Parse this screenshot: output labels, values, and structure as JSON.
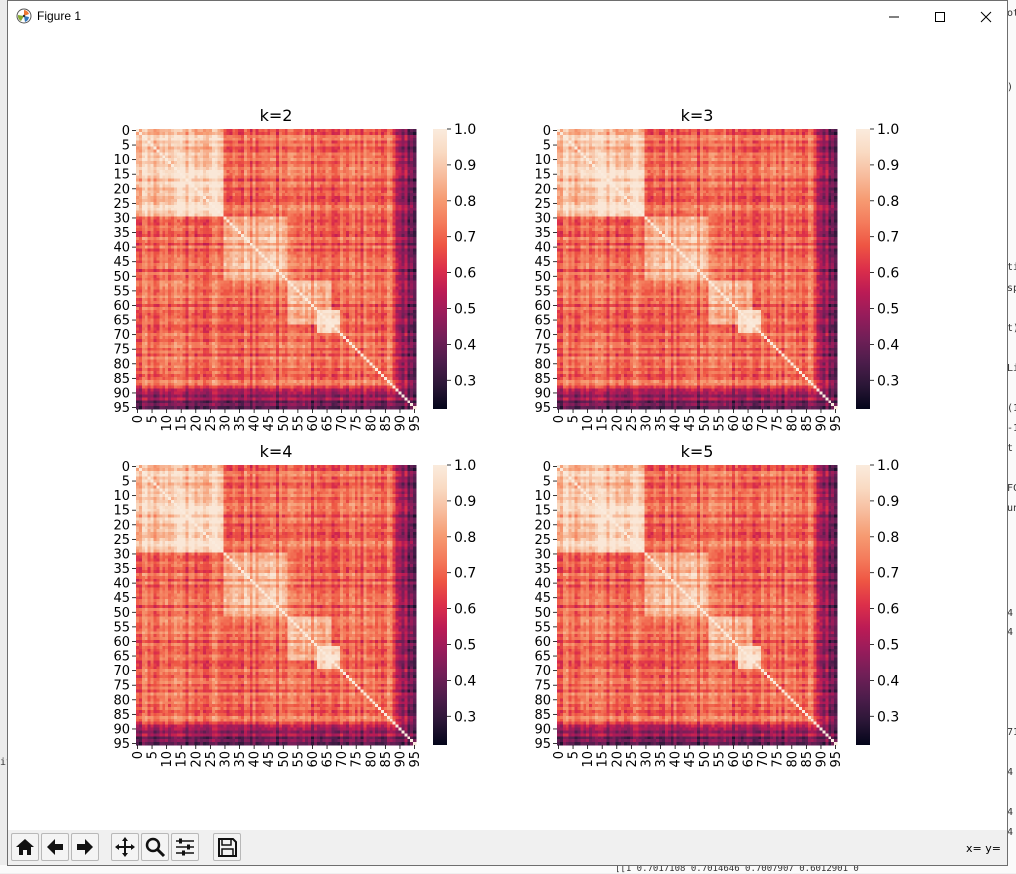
{
  "window": {
    "title": "Figure 1",
    "coords_readout": "x= y="
  },
  "toolbar": {
    "buttons": [
      "home-icon",
      "back-icon",
      "forward-icon",
      "pan-icon",
      "zoom-icon",
      "configure-subplots-icon",
      "save-icon"
    ]
  },
  "background": {
    "left_fragment": "it",
    "right_fragments": [
      "ot",
      ")",
      "ti",
      "sp",
      "t)",
      "Li",
      "(1",
      "-1",
      "t",
      "FC",
      "un",
      "4",
      "4",
      "71",
      "4",
      "4",
      "4"
    ],
    "bottom_fragment": "[[1        0.7017108 0.7014646     0.7007907 0.6012901 0"
  },
  "colors": {
    "cmap_rocket": [
      "#03051a",
      "#2a1636",
      "#4c1d4b",
      "#701f57",
      "#961c5b",
      "#bb1b55",
      "#dc2f4a",
      "#ee5543",
      "#f47c5c",
      "#f69c73",
      "#f7bc9d",
      "#f9dac2",
      "#faebdd"
    ]
  },
  "chart_data": [
    {
      "type": "heatmap",
      "title": "k=2",
      "n": 96,
      "xtick_labels": [
        "0",
        "5",
        "10",
        "15",
        "20",
        "25",
        "30",
        "35",
        "40",
        "45",
        "50",
        "55",
        "60",
        "65",
        "70",
        "75",
        "80",
        "85",
        "90",
        "95"
      ],
      "ytick_labels": [
        "0",
        "5",
        "10",
        "15",
        "20",
        "25",
        "30",
        "35",
        "40",
        "45",
        "50",
        "55",
        "60",
        "65",
        "70",
        "75",
        "80",
        "85",
        "90",
        "95"
      ],
      "colorbar_ticks": [
        "1.0",
        "0.9",
        "0.8",
        "0.7",
        "0.6",
        "0.5",
        "0.4",
        "0.3"
      ],
      "vmin": 0.22,
      "vmax": 1.0,
      "blocks": [
        [
          0,
          30,
          0.88
        ],
        [
          14,
          30,
          0.95
        ],
        [
          30,
          52,
          0.86
        ],
        [
          52,
          67,
          0.82
        ],
        [
          62,
          70,
          0.98
        ],
        [
          74,
          92,
          0.66
        ]
      ],
      "background_value": 0.7,
      "diagonal": 1.0
    },
    {
      "type": "heatmap",
      "title": "k=3",
      "n": 96,
      "xtick_labels": [
        "0",
        "5",
        "10",
        "15",
        "20",
        "25",
        "30",
        "35",
        "40",
        "45",
        "50",
        "55",
        "60",
        "65",
        "70",
        "75",
        "80",
        "85",
        "90",
        "95"
      ],
      "ytick_labels": [
        "0",
        "5",
        "10",
        "15",
        "20",
        "25",
        "30",
        "35",
        "40",
        "45",
        "50",
        "55",
        "60",
        "65",
        "70",
        "75",
        "80",
        "85",
        "90",
        "95"
      ],
      "colorbar_ticks": [
        "1.0",
        "0.9",
        "0.8",
        "0.7",
        "0.6",
        "0.5",
        "0.4",
        "0.3"
      ],
      "vmin": 0.22,
      "vmax": 1.0,
      "blocks": [
        [
          0,
          30,
          0.88
        ],
        [
          14,
          30,
          0.95
        ],
        [
          30,
          52,
          0.86
        ],
        [
          52,
          67,
          0.82
        ],
        [
          62,
          70,
          0.98
        ],
        [
          74,
          92,
          0.66
        ]
      ],
      "background_value": 0.7,
      "diagonal": 1.0
    },
    {
      "type": "heatmap",
      "title": "k=4",
      "n": 96,
      "xtick_labels": [
        "0",
        "5",
        "10",
        "15",
        "20",
        "25",
        "30",
        "35",
        "40",
        "45",
        "50",
        "55",
        "60",
        "65",
        "70",
        "75",
        "80",
        "85",
        "90",
        "95"
      ],
      "ytick_labels": [
        "0",
        "5",
        "10",
        "15",
        "20",
        "25",
        "30",
        "35",
        "40",
        "45",
        "50",
        "55",
        "60",
        "65",
        "70",
        "75",
        "80",
        "85",
        "90",
        "95"
      ],
      "colorbar_ticks": [
        "1.0",
        "0.9",
        "0.8",
        "0.7",
        "0.6",
        "0.5",
        "0.4",
        "0.3"
      ],
      "vmin": 0.22,
      "vmax": 1.0,
      "blocks": [
        [
          0,
          30,
          0.88
        ],
        [
          14,
          30,
          0.95
        ],
        [
          30,
          52,
          0.86
        ],
        [
          52,
          67,
          0.82
        ],
        [
          62,
          70,
          0.98
        ],
        [
          74,
          92,
          0.66
        ]
      ],
      "background_value": 0.7,
      "diagonal": 1.0
    },
    {
      "type": "heatmap",
      "title": "k=5",
      "n": 96,
      "xtick_labels": [
        "0",
        "5",
        "10",
        "15",
        "20",
        "25",
        "30",
        "35",
        "40",
        "45",
        "50",
        "55",
        "60",
        "65",
        "70",
        "75",
        "80",
        "85",
        "90",
        "95"
      ],
      "ytick_labels": [
        "0",
        "5",
        "10",
        "15",
        "20",
        "25",
        "30",
        "35",
        "40",
        "45",
        "50",
        "55",
        "60",
        "65",
        "70",
        "75",
        "80",
        "85",
        "90",
        "95"
      ],
      "colorbar_ticks": [
        "1.0",
        "0.9",
        "0.8",
        "0.7",
        "0.6",
        "0.5",
        "0.4",
        "0.3"
      ],
      "vmin": 0.22,
      "vmax": 1.0,
      "blocks": [
        [
          0,
          30,
          0.88
        ],
        [
          14,
          30,
          0.95
        ],
        [
          30,
          52,
          0.86
        ],
        [
          52,
          67,
          0.82
        ],
        [
          62,
          70,
          0.98
        ],
        [
          74,
          92,
          0.66
        ]
      ],
      "background_value": 0.7,
      "diagonal": 1.0
    }
  ]
}
